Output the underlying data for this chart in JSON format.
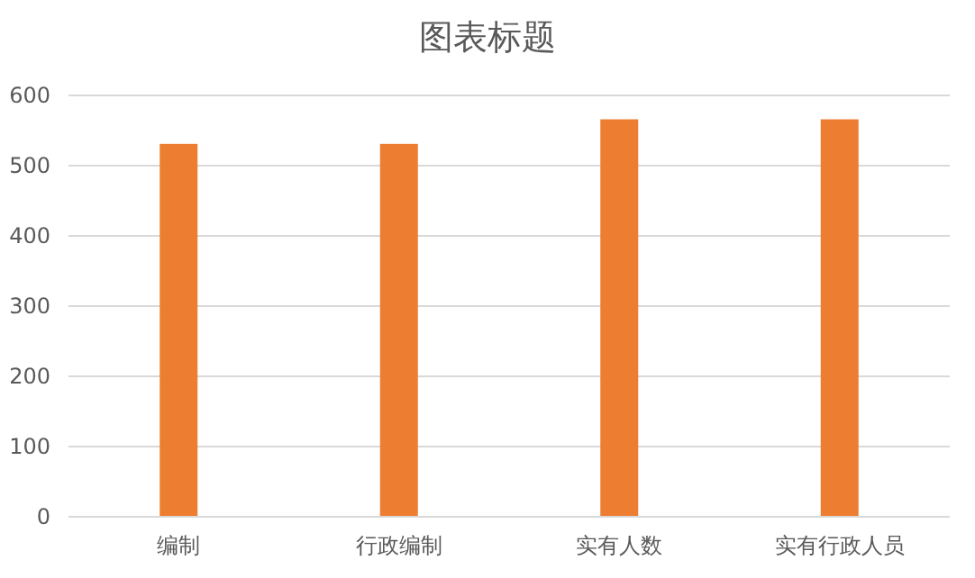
{
  "chart_data": {
    "type": "bar",
    "title": "图表标题",
    "categories": [
      "编制",
      "行政编制",
      "实有人数",
      "实有行政人员"
    ],
    "series": [
      {
        "color": "#ed7d31",
        "values": [
          531,
          531,
          566,
          566
        ]
      }
    ],
    "ylim": [
      0,
      600
    ],
    "yticks": [
      0,
      100,
      200,
      300,
      400,
      500,
      600
    ],
    "grid": "y"
  }
}
